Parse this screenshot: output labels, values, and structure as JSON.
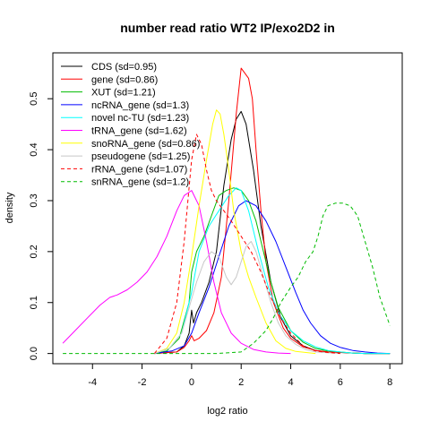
{
  "chart_data": {
    "type": "line",
    "title": "number read ratio WT2 IP/exo2D2 in",
    "xlabel": "log2 ratio",
    "ylabel": "density",
    "xlim": [
      -5.6,
      8.5
    ],
    "ylim": [
      -0.02,
      0.59
    ],
    "x_ticks": [
      -4,
      -2,
      0,
      2,
      4,
      6,
      8
    ],
    "y_ticks": [
      0.0,
      0.1,
      0.2,
      0.3,
      0.4,
      0.5
    ],
    "y_tick_labels": [
      "0.0",
      "0.1",
      "0.2",
      "0.3",
      "0.4",
      "0.5"
    ],
    "legend_position": "top-left",
    "series": [
      {
        "name": "CDS (sd=0.95)",
        "color": "#000000",
        "dash": "solid",
        "x": [
          -1.5,
          -0.6,
          -0.3,
          -0.1,
          0.0,
          0.08,
          0.2,
          0.4,
          0.7,
          1.0,
          1.3,
          1.6,
          1.8,
          2.0,
          2.2,
          2.5,
          2.8,
          3.2,
          3.6,
          4.0,
          4.5,
          5.0,
          5.5,
          6.0,
          6.5,
          7.0,
          8.0
        ],
        "y": [
          0.0,
          0.003,
          0.015,
          0.04,
          0.085,
          0.06,
          0.08,
          0.1,
          0.14,
          0.2,
          0.33,
          0.42,
          0.46,
          0.475,
          0.45,
          0.36,
          0.25,
          0.14,
          0.07,
          0.035,
          0.015,
          0.006,
          0.003,
          0.002,
          0.001,
          0.0,
          0.0
        ]
      },
      {
        "name": "gene (sd=0.86)",
        "color": "#ff0000",
        "dash": "solid",
        "x": [
          -1.5,
          -0.6,
          -0.3,
          -0.1,
          0.0,
          0.1,
          0.3,
          0.6,
          0.9,
          1.2,
          1.5,
          1.8,
          2.0,
          2.15,
          2.3,
          2.45,
          2.6,
          2.8,
          3.0,
          3.3,
          3.7,
          4.0,
          4.5,
          5.0,
          5.5,
          6.0,
          7.0,
          8.0
        ],
        "y": [
          0.0,
          0.003,
          0.012,
          0.025,
          0.035,
          0.025,
          0.03,
          0.045,
          0.08,
          0.15,
          0.3,
          0.47,
          0.56,
          0.55,
          0.54,
          0.5,
          0.4,
          0.28,
          0.18,
          0.1,
          0.05,
          0.03,
          0.013,
          0.006,
          0.003,
          0.002,
          0.0,
          0.0
        ]
      },
      {
        "name": "XUT (sd=1.21)",
        "color": "#00bb00",
        "dash": "solid",
        "x": [
          -1.5,
          -1.0,
          -0.5,
          -0.1,
          0.0,
          0.2,
          0.5,
          0.8,
          1.1,
          1.4,
          1.7,
          2.0,
          2.3,
          2.6,
          2.9,
          3.2,
          3.5,
          4.0,
          4.5,
          5.0,
          5.5,
          6.0,
          6.5,
          7.0,
          8.0
        ],
        "y": [
          0.0,
          0.005,
          0.03,
          0.1,
          0.16,
          0.2,
          0.23,
          0.27,
          0.31,
          0.32,
          0.325,
          0.32,
          0.3,
          0.26,
          0.2,
          0.14,
          0.09,
          0.045,
          0.022,
          0.01,
          0.005,
          0.003,
          0.001,
          0.0,
          0.0
        ]
      },
      {
        "name": "ncRNA_gene (sd=1.3)",
        "color": "#0000ff",
        "dash": "solid",
        "x": [
          -1.5,
          -0.8,
          -0.3,
          0.0,
          0.3,
          0.7,
          1.1,
          1.5,
          1.9,
          2.2,
          2.6,
          3.0,
          3.4,
          3.8,
          4.2,
          4.5,
          4.8,
          5.2,
          5.6,
          6.0,
          6.5,
          7.0,
          7.5,
          8.0
        ],
        "y": [
          0.0,
          0.005,
          0.015,
          0.04,
          0.08,
          0.13,
          0.19,
          0.25,
          0.29,
          0.3,
          0.29,
          0.26,
          0.22,
          0.17,
          0.12,
          0.085,
          0.06,
          0.035,
          0.02,
          0.012,
          0.006,
          0.003,
          0.001,
          0.0
        ]
      },
      {
        "name": "novel nc-TU (sd=1.23)",
        "color": "#00ffff",
        "dash": "solid",
        "x": [
          -1.5,
          -0.9,
          -0.4,
          0.0,
          0.3,
          0.7,
          1.1,
          1.5,
          1.8,
          2.0,
          2.3,
          2.7,
          3.1,
          3.5,
          4.0,
          4.5,
          5.0,
          5.5,
          6.0,
          6.5,
          7.0,
          8.0
        ],
        "y": [
          0.0,
          0.01,
          0.04,
          0.12,
          0.2,
          0.25,
          0.28,
          0.31,
          0.325,
          0.32,
          0.28,
          0.2,
          0.13,
          0.08,
          0.045,
          0.025,
          0.013,
          0.006,
          0.003,
          0.001,
          0.0,
          0.0
        ]
      },
      {
        "name": "tRNA_gene (sd=1.62)",
        "color": "#ff00ff",
        "dash": "solid",
        "x": [
          -5.2,
          -4.7,
          -4.2,
          -3.7,
          -3.3,
          -3.0,
          -2.6,
          -2.2,
          -1.8,
          -1.4,
          -1.0,
          -0.6,
          -0.3,
          0.0,
          0.3,
          0.6,
          0.9,
          1.2,
          1.6,
          2.0,
          2.5,
          3.0,
          3.5,
          4.0
        ],
        "y": [
          0.02,
          0.045,
          0.07,
          0.095,
          0.11,
          0.115,
          0.125,
          0.14,
          0.16,
          0.19,
          0.23,
          0.28,
          0.31,
          0.32,
          0.29,
          0.22,
          0.14,
          0.08,
          0.04,
          0.02,
          0.008,
          0.003,
          0.001,
          0.0
        ]
      },
      {
        "name": "snoRNA_gene (sd=0.86)",
        "color": "#ffff00",
        "dash": "solid",
        "x": [
          -1.5,
          -1.0,
          -0.6,
          -0.3,
          0.0,
          0.3,
          0.6,
          0.85,
          1.0,
          1.15,
          1.3,
          1.5,
          1.7,
          2.0,
          2.3,
          2.6,
          3.0,
          3.4,
          3.8,
          4.2,
          5.0
        ],
        "y": [
          0.0,
          0.01,
          0.04,
          0.1,
          0.19,
          0.29,
          0.38,
          0.45,
          0.478,
          0.47,
          0.43,
          0.36,
          0.28,
          0.2,
          0.15,
          0.11,
          0.06,
          0.025,
          0.01,
          0.004,
          0.0
        ]
      },
      {
        "name": "pseudogene (sd=1.25)",
        "color": "#c8c8c8",
        "dash": "solid",
        "x": [
          -1.5,
          -0.9,
          -0.4,
          -0.1,
          0.2,
          0.5,
          0.8,
          1.1,
          1.4,
          1.6,
          1.8,
          2.0,
          2.2,
          2.4,
          2.6,
          2.9,
          3.2,
          3.5,
          3.8,
          4.2,
          4.6,
          5.0,
          6.0
        ],
        "y": [
          0.0,
          0.01,
          0.04,
          0.09,
          0.14,
          0.18,
          0.2,
          0.19,
          0.15,
          0.135,
          0.15,
          0.18,
          0.21,
          0.22,
          0.2,
          0.15,
          0.1,
          0.06,
          0.035,
          0.018,
          0.008,
          0.003,
          0.0
        ]
      },
      {
        "name": "rRNA_gene (sd=1.07)",
        "color": "#ff0000",
        "dash": "dashed",
        "x": [
          -1.5,
          -1.0,
          -0.6,
          -0.3,
          0.0,
          0.2,
          0.4,
          0.6,
          0.8,
          1.0,
          1.3,
          1.6,
          2.0,
          2.4,
          2.8,
          3.2,
          3.6,
          4.0,
          4.5,
          5.0,
          5.5,
          6.0
        ],
        "y": [
          0.0,
          0.03,
          0.1,
          0.22,
          0.38,
          0.43,
          0.41,
          0.36,
          0.32,
          0.3,
          0.28,
          0.26,
          0.23,
          0.2,
          0.16,
          0.11,
          0.07,
          0.04,
          0.015,
          0.005,
          0.002,
          0.0
        ]
      },
      {
        "name": "snRNA_gene (sd=1.2)",
        "color": "#00bb00",
        "dash": "dashed",
        "x": [
          -5.2,
          1.0,
          2.0,
          2.5,
          3.0,
          3.3,
          3.6,
          4.0,
          4.3,
          4.6,
          4.9,
          5.1,
          5.3,
          5.5,
          5.8,
          6.1,
          6.4,
          6.7,
          7.0,
          7.3,
          7.6,
          8.0
        ],
        "y": [
          0.0,
          0.0,
          0.003,
          0.02,
          0.045,
          0.07,
          0.1,
          0.13,
          0.15,
          0.18,
          0.2,
          0.23,
          0.27,
          0.29,
          0.295,
          0.295,
          0.29,
          0.27,
          0.22,
          0.17,
          0.11,
          0.055
        ]
      }
    ]
  }
}
